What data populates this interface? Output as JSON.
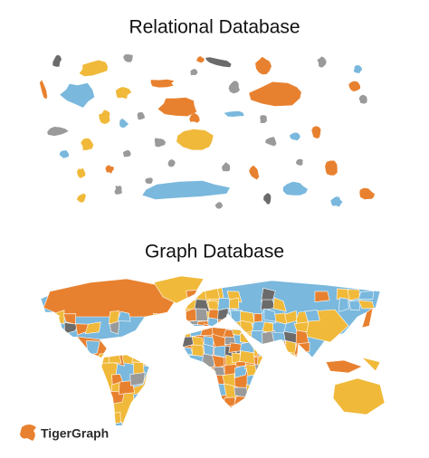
{
  "titles": {
    "relational": "Relational Database",
    "graph": "Graph Database"
  },
  "logo": {
    "text": "TigerGraph"
  }
}
